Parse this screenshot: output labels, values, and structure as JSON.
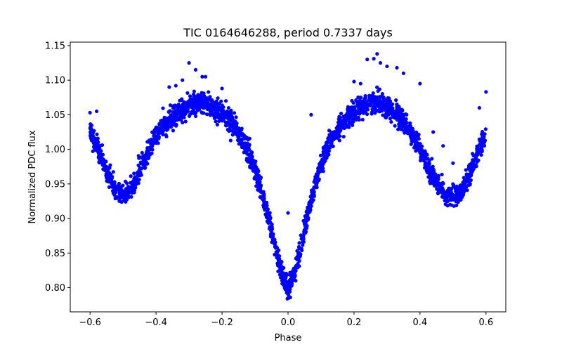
{
  "chart_data": {
    "type": "scatter",
    "title": "TIC 0164646288, period 0.7337 days",
    "xlabel": "Phase",
    "ylabel": "Normalized PDC flux",
    "xlim": [
      -0.66,
      0.66
    ],
    "ylim": [
      0.765,
      1.155
    ],
    "xticks": [
      -0.6,
      -0.4,
      -0.2,
      0.0,
      0.2,
      0.4,
      0.6
    ],
    "xtick_labels": [
      "−0.6",
      "−0.4",
      "−0.2",
      "0.0",
      "0.2",
      "0.4",
      "0.6"
    ],
    "yticks": [
      0.8,
      0.85,
      0.9,
      0.95,
      1.0,
      1.05,
      1.1,
      1.15
    ],
    "ytick_labels": [
      "0.80",
      "0.85",
      "0.90",
      "0.95",
      "1.00",
      "1.05",
      "1.10",
      "1.15"
    ],
    "grid": false,
    "marker_color": "#0000ff",
    "series": [
      {
        "x": [
          -0.6,
          -0.58,
          -0.56,
          -0.54,
          -0.52,
          -0.5,
          -0.48,
          -0.46,
          -0.44,
          -0.42,
          -0.4,
          -0.38,
          -0.36,
          -0.34,
          -0.32,
          -0.3,
          -0.28,
          -0.26,
          -0.24,
          -0.22,
          -0.2,
          -0.18,
          -0.16,
          -0.14,
          -0.12,
          -0.1,
          -0.08,
          -0.06,
          -0.04,
          -0.02,
          0.0,
          0.02,
          0.04,
          0.06,
          0.08,
          0.1,
          0.12,
          0.14,
          0.16,
          0.18,
          0.2,
          0.22,
          0.24,
          0.26,
          0.28,
          0.3,
          0.32,
          0.34,
          0.36,
          0.38,
          0.4,
          0.42,
          0.44,
          0.46,
          0.48,
          0.5,
          0.52,
          0.54,
          0.56,
          0.58,
          0.6
        ],
        "y": [
          1.025,
          1.005,
          0.98,
          0.958,
          0.94,
          0.932,
          0.94,
          0.958,
          0.98,
          1.0,
          1.018,
          1.032,
          1.043,
          1.052,
          1.058,
          1.062,
          1.065,
          1.066,
          1.064,
          1.06,
          1.052,
          1.042,
          1.03,
          1.015,
          0.995,
          0.97,
          0.94,
          0.902,
          0.86,
          0.822,
          0.795,
          0.822,
          0.86,
          0.905,
          0.945,
          0.978,
          1.002,
          1.02,
          1.034,
          1.046,
          1.055,
          1.062,
          1.066,
          1.068,
          1.067,
          1.063,
          1.056,
          1.046,
          1.033,
          1.018,
          1.0,
          0.98,
          0.96,
          0.945,
          0.935,
          0.93,
          0.935,
          0.952,
          0.975,
          1.0,
          1.02
        ]
      }
    ],
    "outliers": {
      "x": [
        -0.6,
        -0.58,
        -0.3,
        -0.28,
        -0.26,
        -0.25,
        -0.32,
        -0.34,
        -0.36,
        -0.2,
        -0.18,
        -0.14,
        -0.11,
        -0.1,
        0.0,
        0.07,
        0.2,
        0.22,
        0.24,
        0.26,
        0.27,
        0.28,
        0.3,
        0.33,
        0.35,
        0.4,
        0.44,
        0.47,
        0.5,
        0.6,
        0.58
      ],
      "y": [
        1.053,
        1.055,
        1.125,
        1.115,
        1.105,
        1.105,
        1.1,
        1.092,
        1.09,
        1.088,
        1.06,
        1.03,
        0.995,
        0.98,
        0.908,
        1.05,
        1.098,
        1.095,
        1.13,
        1.131,
        1.138,
        1.125,
        1.12,
        1.118,
        1.11,
        1.095,
        1.025,
        1.005,
        0.98,
        1.083,
        1.06
      ]
    }
  }
}
